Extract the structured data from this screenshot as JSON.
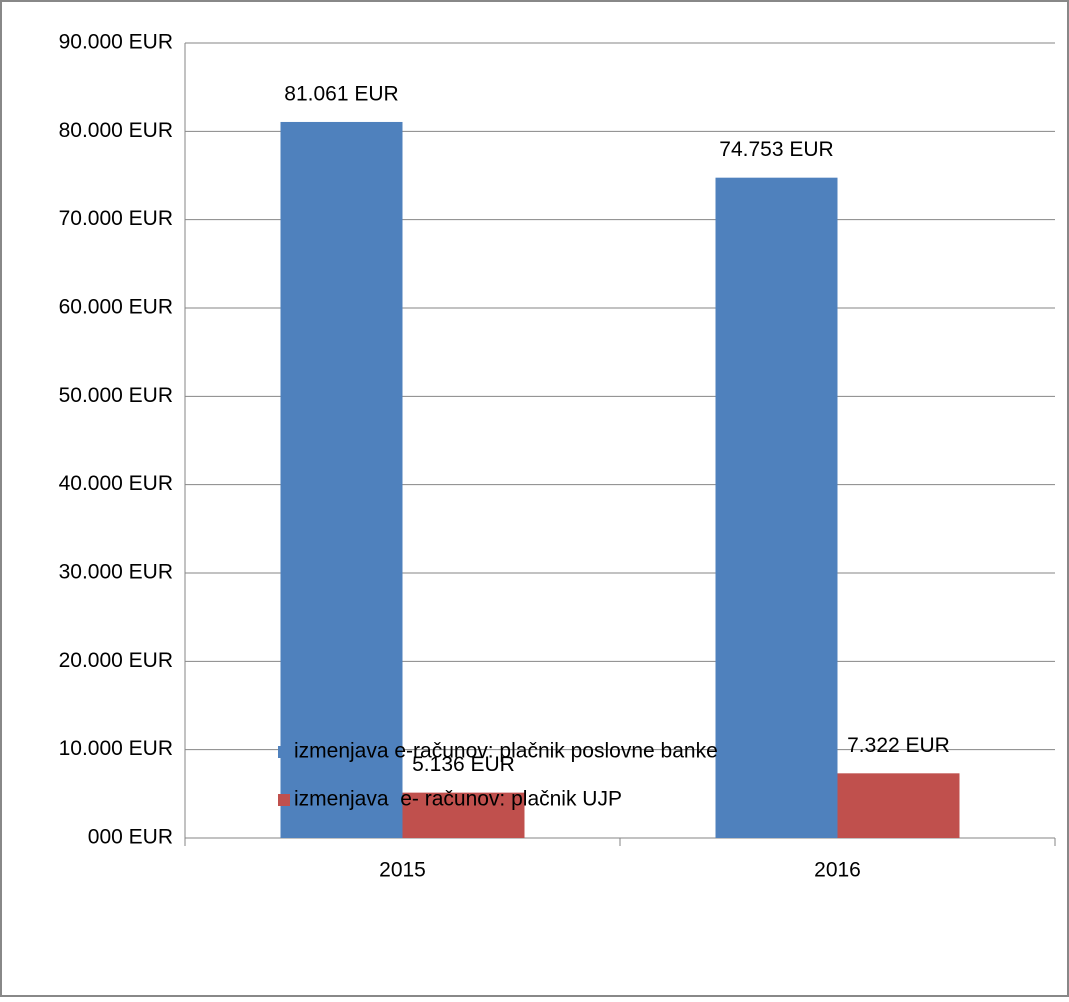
{
  "chart_data": {
    "type": "bar",
    "categories": [
      "2015",
      "2016"
    ],
    "series": [
      {
        "name": "izmenjava e-računov: plačnik poslovne banke",
        "color": "#4f81bd",
        "values": [
          81061,
          74753
        ],
        "value_labels": [
          "81.061 EUR",
          "74.753 EUR"
        ]
      },
      {
        "name": "izmenjava  e- računov: plačnik UJP",
        "color": "#c0504d",
        "values": [
          5136,
          7322
        ],
        "value_labels": [
          "5.136 EUR",
          "7.322 EUR"
        ]
      }
    ],
    "ylim": [
      0,
      90000
    ],
    "yticks": [
      {
        "value": 0,
        "label": "000 EUR"
      },
      {
        "value": 10000,
        "label": "10.000 EUR"
      },
      {
        "value": 20000,
        "label": "20.000 EUR"
      },
      {
        "value": 30000,
        "label": "30.000 EUR"
      },
      {
        "value": 40000,
        "label": "40.000 EUR"
      },
      {
        "value": 50000,
        "label": "50.000 EUR"
      },
      {
        "value": 60000,
        "label": "60.000 EUR"
      },
      {
        "value": 70000,
        "label": "70.000 EUR"
      },
      {
        "value": 80000,
        "label": "80.000 EUR"
      },
      {
        "value": 90000,
        "label": "90.000 EUR"
      }
    ],
    "grid": true,
    "legend": "bottom"
  }
}
